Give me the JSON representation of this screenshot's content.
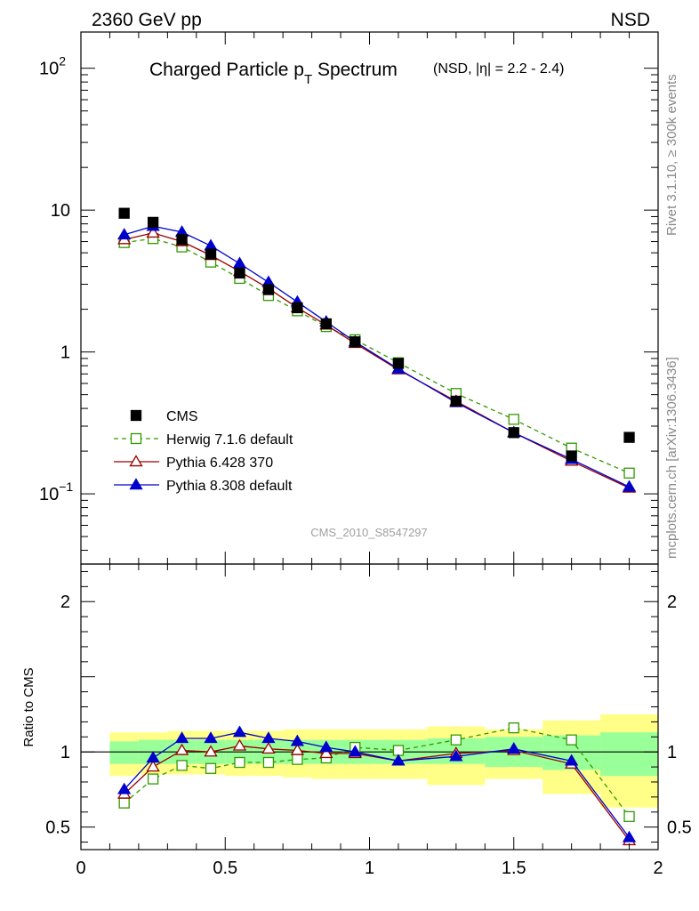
{
  "header": {
    "energy_label": "2360 GeV pp",
    "process_label": "NSD",
    "title": "Charged Particle p",
    "title_subscript": "T",
    "title_tail": " Spectrum",
    "title_note": "(NSD, |η| = 2.2 - 2.4)",
    "side_rivet": "Rivet 3.1.10, ≥ 300k events",
    "side_mcplots": "mcplots.cern.ch [arXiv:1306.3436]",
    "watermark": "CMS_2010_S8547297"
  },
  "chart_data": [
    {
      "type": "scatter",
      "title": "Charged Particle pT Spectrum",
      "ylog": true,
      "xlim": [
        0,
        2.0
      ],
      "ylim": [
        0.032,
        180
      ],
      "xticks": [
        {
          "v": 0,
          "label": "0"
        },
        {
          "v": 0.5,
          "label": "0.5"
        },
        {
          "v": 1,
          "label": "1"
        },
        {
          "v": 1.5,
          "label": "1.5"
        },
        {
          "v": 2,
          "label": "2"
        }
      ],
      "yticks": [
        {
          "v": 0.1,
          "base": "10",
          "exp": "−1"
        },
        {
          "v": 1,
          "base": "1",
          "exp": ""
        },
        {
          "v": 10,
          "base": "10",
          "exp": ""
        },
        {
          "v": 100,
          "base": "10",
          "exp": "2"
        }
      ],
      "legend_position": "bottom-left",
      "series": [
        {
          "name": "CMS",
          "color": "#000000",
          "marker": "filled-square",
          "line": "none",
          "x": [
            0.15,
            0.25,
            0.35,
            0.45,
            0.55,
            0.65,
            0.75,
            0.85,
            0.95,
            1.1,
            1.3,
            1.5,
            1.7,
            1.9
          ],
          "y": [
            9.5,
            8.2,
            6.2,
            4.9,
            3.6,
            2.75,
            2.05,
            1.58,
            1.18,
            0.83,
            0.45,
            0.27,
            0.185,
            0.25
          ]
        },
        {
          "name": "Herwig 7.1.6 default",
          "color": "#339900",
          "marker": "open-square",
          "line": "dashed",
          "x": [
            0.15,
            0.25,
            0.35,
            0.45,
            0.55,
            0.65,
            0.75,
            0.85,
            0.95,
            1.1,
            1.3,
            1.5,
            1.7,
            1.9
          ],
          "y": [
            5.9,
            6.3,
            5.5,
            4.3,
            3.3,
            2.5,
            1.95,
            1.51,
            1.22,
            0.84,
            0.51,
            0.335,
            0.21,
            0.14
          ]
        },
        {
          "name": "Pythia 6.428 370",
          "color": "#990000",
          "marker": "open-triangle",
          "line": "solid",
          "x": [
            0.15,
            0.25,
            0.35,
            0.45,
            0.55,
            0.65,
            0.75,
            0.85,
            0.95,
            1.1,
            1.3,
            1.5,
            1.7,
            1.9
          ],
          "y": [
            6.2,
            6.9,
            6.0,
            4.8,
            3.7,
            2.8,
            2.05,
            1.55,
            1.15,
            0.75,
            0.45,
            0.27,
            0.17,
            0.11
          ]
        },
        {
          "name": "Pythia 8.308 default",
          "color": "#0000cc",
          "marker": "filled-triangle",
          "line": "solid",
          "x": [
            0.15,
            0.25,
            0.35,
            0.45,
            0.55,
            0.65,
            0.75,
            0.85,
            0.95,
            1.1,
            1.3,
            1.5,
            1.7,
            1.9
          ],
          "y": [
            6.7,
            7.7,
            7.0,
            5.6,
            4.2,
            3.1,
            2.25,
            1.63,
            1.18,
            0.76,
            0.44,
            0.27,
            0.175,
            0.112
          ]
        }
      ]
    },
    {
      "type": "line",
      "ylabel": "Ratio to CMS",
      "xlim": [
        0,
        2.0
      ],
      "ylim": [
        0.35,
        2.25
      ],
      "reference": 1.0,
      "xticks": [
        {
          "v": 0,
          "label": "0"
        },
        {
          "v": 0.5,
          "label": "0.5"
        },
        {
          "v": 1,
          "label": "1"
        },
        {
          "v": 1.5,
          "label": "1.5"
        },
        {
          "v": 2,
          "label": "2"
        }
      ],
      "yticks": [
        {
          "v": 0.5,
          "label": "0.5"
        },
        {
          "v": 1,
          "label": "1"
        },
        {
          "v": 2,
          "label": "2"
        }
      ],
      "bands": {
        "bin_edges": [
          0.1,
          0.2,
          0.3,
          0.4,
          0.5,
          0.6,
          0.7,
          0.8,
          0.9,
          1.0,
          1.2,
          1.4,
          1.6,
          1.8,
          2.0
        ],
        "inner_color": "#99ff99",
        "outer_color": "#ffff88",
        "inner_low": [
          0.92,
          0.92,
          0.92,
          0.92,
          0.92,
          0.92,
          0.92,
          0.92,
          0.92,
          0.92,
          0.92,
          0.9,
          0.88,
          0.84
        ],
        "inner_high": [
          1.07,
          1.08,
          1.08,
          1.08,
          1.08,
          1.08,
          1.08,
          1.08,
          1.08,
          1.08,
          1.09,
          1.1,
          1.11,
          1.13
        ],
        "outer_low": [
          0.84,
          0.85,
          0.85,
          0.85,
          0.84,
          0.84,
          0.83,
          0.82,
          0.82,
          0.82,
          0.78,
          0.82,
          0.72,
          0.63
        ],
        "outer_high": [
          1.13,
          1.13,
          1.14,
          1.14,
          1.14,
          1.14,
          1.15,
          1.15,
          1.15,
          1.15,
          1.17,
          1.15,
          1.21,
          1.25
        ]
      },
      "series": [
        {
          "name": "Herwig 7.1.6 default",
          "color": "#339900",
          "marker": "open-square",
          "line": "dashed",
          "x": [
            0.15,
            0.25,
            0.35,
            0.45,
            0.55,
            0.65,
            0.75,
            0.85,
            0.95,
            1.1,
            1.3,
            1.5,
            1.7,
            1.9
          ],
          "y": [
            0.66,
            0.82,
            0.91,
            0.89,
            0.93,
            0.93,
            0.95,
            0.96,
            1.03,
            1.01,
            1.08,
            1.16,
            1.08,
            0.57
          ]
        },
        {
          "name": "Pythia 6.428 370",
          "color": "#990000",
          "marker": "open-triangle",
          "line": "solid",
          "x": [
            0.15,
            0.25,
            0.35,
            0.45,
            0.55,
            0.65,
            0.75,
            0.85,
            0.95,
            1.1,
            1.3,
            1.5,
            1.7,
            1.9
          ],
          "y": [
            0.72,
            0.9,
            1.01,
            1.0,
            1.04,
            1.02,
            1.01,
            0.99,
            0.99,
            0.94,
            0.99,
            1.01,
            0.92,
            0.41
          ]
        },
        {
          "name": "Pythia 8.308 default",
          "color": "#0000cc",
          "marker": "filled-triangle",
          "line": "solid",
          "x": [
            0.15,
            0.25,
            0.35,
            0.45,
            0.55,
            0.65,
            0.75,
            0.85,
            0.95,
            1.1,
            1.3,
            1.5,
            1.7,
            1.9
          ],
          "y": [
            0.75,
            0.96,
            1.09,
            1.09,
            1.13,
            1.09,
            1.07,
            1.03,
            1.0,
            0.94,
            0.97,
            1.02,
            0.94,
            0.43
          ]
        }
      ]
    }
  ]
}
